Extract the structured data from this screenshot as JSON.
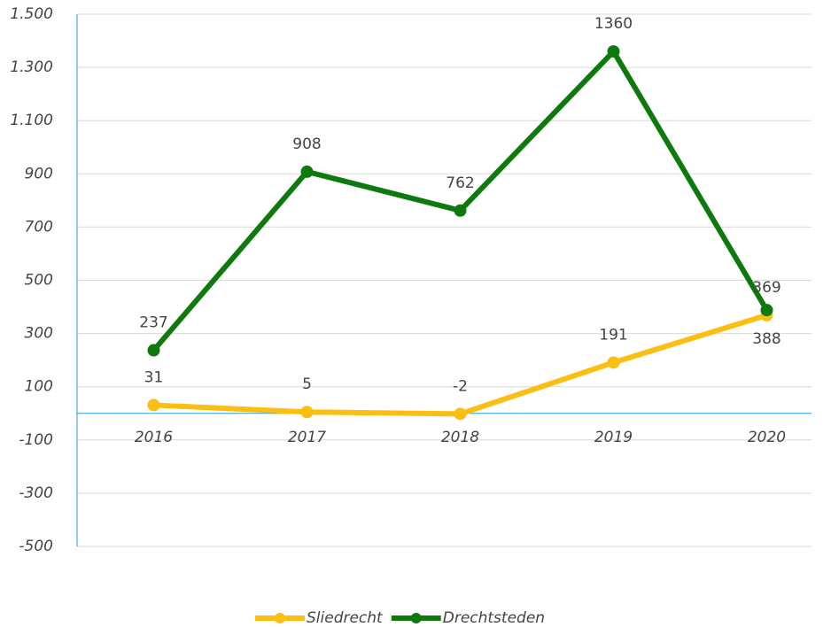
{
  "chart_data": {
    "type": "line",
    "categories": [
      "2016",
      "2017",
      "2018",
      "2019",
      "2020"
    ],
    "series": [
      {
        "name": "Sliedrecht",
        "color": "#fbbf12",
        "values": [
          31,
          5,
          -2,
          191,
          369
        ]
      },
      {
        "name": "Drechtsteden",
        "color": "#0e7a0e",
        "values": [
          237,
          908,
          762,
          1360,
          388
        ]
      }
    ],
    "ylim": [
      -500,
      1500
    ],
    "yticks": [
      -500,
      -300,
      -100,
      100,
      300,
      500,
      700,
      900,
      {
        "value": 1100,
        "label": "1.100"
      },
      {
        "value": 1300,
        "label": "1.300"
      },
      {
        "value": 1500,
        "label": "1.500"
      }
    ],
    "grid": true,
    "legend": "bottom"
  }
}
